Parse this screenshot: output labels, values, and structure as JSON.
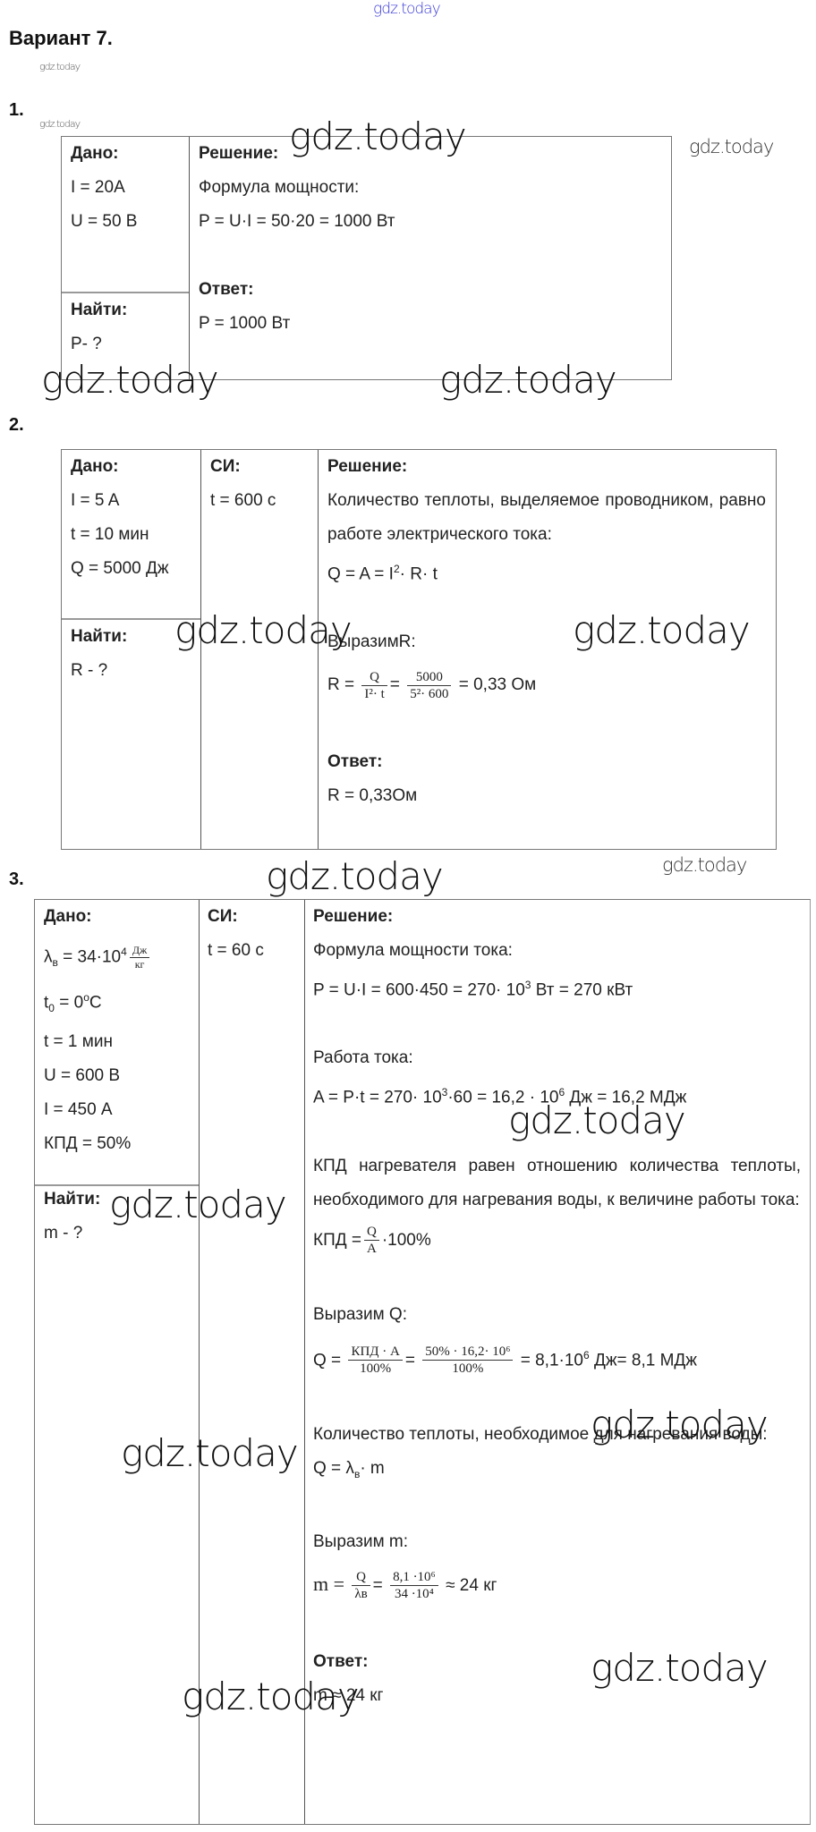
{
  "header": {
    "watermark_top": "gdz.today",
    "title": "Вариант 7.",
    "watermark_small": "gdz.today"
  },
  "watermark": "gdz.today",
  "task1": {
    "number": "1.",
    "given_label": "Дано:",
    "given": [
      "I = 20A",
      "U = 50 В"
    ],
    "find_label": "Найти:",
    "find": "P- ?",
    "solution_label": "Решение:",
    "lines": [
      "Формула мощности:",
      "P = U·I = 50·20 = 1000 Вт"
    ],
    "answer_label": "Ответ:",
    "answer": "P = 1000 Вт"
  },
  "task2": {
    "number": "2.",
    "given_label": "Дано:",
    "given": [
      "I = 5 A",
      "t = 10 мин",
      "Q = 5000 Дж"
    ],
    "si_label": "СИ:",
    "si": [
      "t = 600 с"
    ],
    "find_label": "Найти:",
    "find": "R - ?",
    "solution_label": "Решение:",
    "text1": "Количество теплоты, выделяемое проводником, равно работе электрического тока:",
    "formula1": {
      "lhs": "Q = A = I",
      "exp": "2",
      "rest": "· R· t"
    },
    "express": "ВыразимR:",
    "formula2": {
      "lhs": "R =",
      "f1n": "Q",
      "f1d": "I²· t",
      "eq": "=",
      "f2n": "5000",
      "f2d": "5²· 600",
      "result": "= 0,33 Ом"
    },
    "answer_label": "Ответ:",
    "answer": "R = 0,33Ом"
  },
  "task3": {
    "number": "3.",
    "given_label": "Дано:",
    "lambda": {
      "sym": "λ",
      "sub": "в",
      "val": "= 34·10",
      "exp": "4",
      "unit_n": "Дж",
      "unit_d": "кг"
    },
    "t0": {
      "sym": "t",
      "sub": "0",
      "val": "= 0",
      "sup": "o",
      "unit": "C"
    },
    "given": [
      "t = 1 мин",
      "U = 600 В",
      "I = 450 А",
      "КПД = 50%"
    ],
    "si_label": "СИ:",
    "si": [
      "t = 60 с"
    ],
    "find_label": "Найти:",
    "find": "m - ?",
    "solution_label": "Решение:",
    "power_title": "Формула мощности тока:",
    "power": {
      "a": "P = U·I = 600·450 = 270· 10",
      "exp": "3",
      "b": " Вт = 270 кВт"
    },
    "work_title": "Работа тока:",
    "work": {
      "a": "A = P·t = 270· 10",
      "exp1": "3",
      "b": "·60 = 16,2 · 10",
      "exp2": "6",
      "c": " Дж = 16,2 МДж"
    },
    "eff_text": "КПД нагревателя равен отношению количества теплоты, необходимого для нагревания воды, к величине работы тока:",
    "eff": {
      "lhs": "КПД =",
      "n": "Q",
      "d": "A",
      "rest": "·100%"
    },
    "express_q": "Выразим Q:",
    "q": {
      "lhs": "Q =",
      "f1n": "КПД · A",
      "f1d": "100%",
      "eq": "=",
      "f2n": "50% · 16,2· 10⁶",
      "f2d": "100%",
      "a": "= 8,1·10",
      "exp": "6",
      "b": " Дж= 8,1 МДж"
    },
    "heat_text": "Количество теплоты, необходимое для нагревания воды:",
    "heat": {
      "a": "Q = λ",
      "sub": "в",
      "b": "· m"
    },
    "express_m": "Выразим m:",
    "m": {
      "lhs": "m =",
      "f1n": "Q",
      "f1d": "λв",
      "eq": "=",
      "f2n": "8,1 ·10⁶",
      "f2d": "34 ·10⁴",
      "result": "≈ 24 кг"
    },
    "answer_label": "Ответ:",
    "answer": "m ≈ 24 кг"
  }
}
